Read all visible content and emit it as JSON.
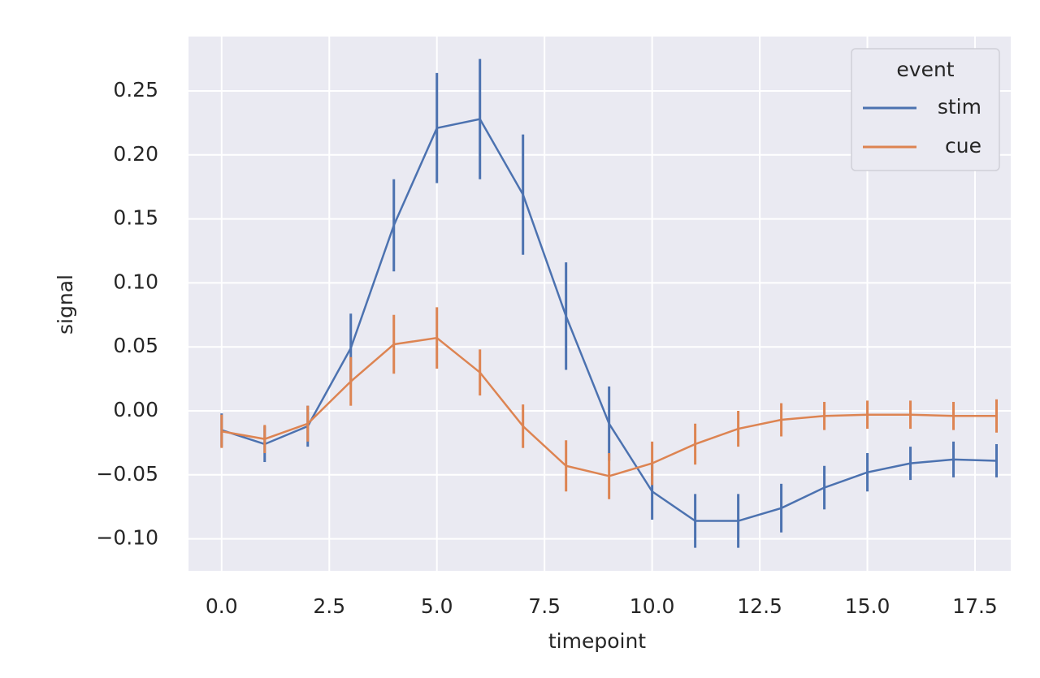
{
  "chart_data": {
    "type": "line",
    "xlabel": "timepoint",
    "ylabel": "signal",
    "x": [
      0,
      1,
      2,
      3,
      4,
      5,
      6,
      7,
      8,
      9,
      10,
      11,
      12,
      13,
      14,
      15,
      16,
      17,
      18
    ],
    "series": [
      {
        "name": "stim",
        "color": "#4c72b0",
        "values": [
          -0.015,
          -0.026,
          -0.012,
          0.049,
          0.145,
          0.221,
          0.228,
          0.169,
          0.074,
          -0.01,
          -0.063,
          -0.086,
          -0.086,
          -0.076,
          -0.06,
          -0.048,
          -0.041,
          -0.038,
          -0.039
        ],
        "errors": [
          0.013,
          0.014,
          0.016,
          0.027,
          0.036,
          0.043,
          0.047,
          0.047,
          0.042,
          0.029,
          0.022,
          0.021,
          0.021,
          0.019,
          0.017,
          0.015,
          0.013,
          0.014,
          0.013
        ]
      },
      {
        "name": "cue",
        "color": "#dd8452",
        "values": [
          -0.016,
          -0.022,
          -0.01,
          0.023,
          0.052,
          0.057,
          0.03,
          -0.012,
          -0.043,
          -0.051,
          -0.041,
          -0.026,
          -0.014,
          -0.007,
          -0.004,
          -0.003,
          -0.003,
          -0.004,
          -0.004
        ],
        "errors": [
          0.013,
          0.011,
          0.014,
          0.019,
          0.023,
          0.024,
          0.018,
          0.017,
          0.02,
          0.018,
          0.017,
          0.016,
          0.014,
          0.013,
          0.011,
          0.011,
          0.011,
          0.011,
          0.013
        ]
      }
    ],
    "legend_title": "event",
    "legend": "upper right",
    "grid": true,
    "xlim": [
      -0.77,
      18.33
    ],
    "xticks": [
      {
        "value": 0,
        "label": "0.0"
      },
      {
        "value": 2.5,
        "label": "2.5"
      },
      {
        "value": 5,
        "label": "5.0"
      },
      {
        "value": 7.5,
        "label": "7.5"
      },
      {
        "value": 10,
        "label": "10.0"
      },
      {
        "value": 12.5,
        "label": "12.5"
      },
      {
        "value": 15,
        "label": "15.0"
      },
      {
        "value": 17.5,
        "label": "17.5"
      }
    ],
    "ylim": [
      -0.125,
      0.2925
    ],
    "yticks": [
      {
        "value": -0.1,
        "label": "−0.10"
      },
      {
        "value": -0.05,
        "label": "−0.05"
      },
      {
        "value": 0,
        "label": "0.00"
      },
      {
        "value": 0.05,
        "label": "0.05"
      },
      {
        "value": 0.1,
        "label": "0.10"
      },
      {
        "value": 0.15,
        "label": "0.15"
      },
      {
        "value": 0.2,
        "label": "0.20"
      },
      {
        "value": 0.25,
        "label": "0.25"
      }
    ]
  }
}
